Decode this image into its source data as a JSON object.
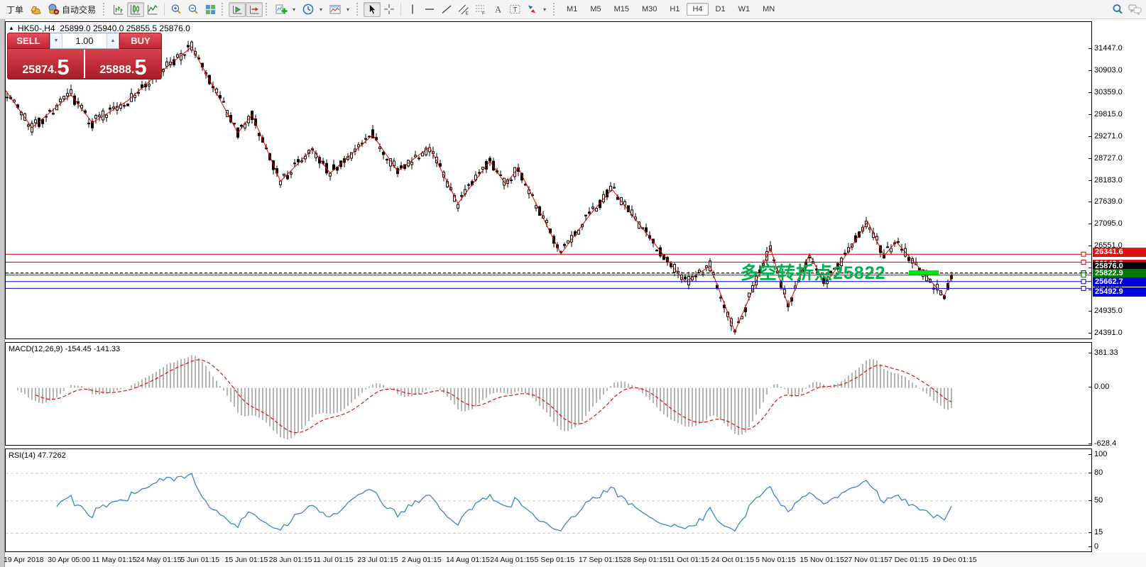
{
  "window": {
    "title_triangle": "▲",
    "symbol_period": "HK50-,H4",
    "ohlc": "25899.0 25940.0 25855.5 25876.0"
  },
  "icons": {
    "caret": "▾",
    "volume_down": "▼",
    "volume_up": "▲"
  },
  "toolbar": {
    "tools": [
      {
        "type": "text",
        "name": "orders-button",
        "label": "丁单"
      },
      {
        "type": "icon",
        "name": "new-order-icon",
        "icon": "ingot"
      },
      {
        "type": "icon-text",
        "name": "autotrade-button",
        "icon": "robot",
        "label": "自动交易"
      },
      {
        "type": "grip"
      },
      {
        "type": "icon",
        "name": "bar-chart-icon",
        "icon": "bars"
      },
      {
        "type": "icon",
        "name": "candlestick-chart-icon",
        "icon": "candles",
        "pressed": true
      },
      {
        "type": "icon",
        "name": "line-chart-icon",
        "icon": "linechart"
      },
      {
        "type": "sep"
      },
      {
        "type": "icon",
        "name": "zoom-in-icon",
        "icon": "zoomin"
      },
      {
        "type": "icon",
        "name": "zoom-out-icon",
        "icon": "zoomout"
      },
      {
        "type": "icon",
        "name": "tile-windows-icon",
        "icon": "tiles"
      },
      {
        "type": "grip"
      },
      {
        "type": "icon",
        "name": "auto-scroll-icon",
        "icon": "autoscroll",
        "pressed": true
      },
      {
        "type": "icon",
        "name": "chart-shift-icon",
        "icon": "shift",
        "pressed": true
      },
      {
        "type": "grip"
      },
      {
        "type": "icon",
        "name": "indicators-icon",
        "icon": "indicators"
      },
      {
        "type": "caret",
        "name": "indicators-dropdown"
      },
      {
        "type": "icon",
        "name": "periods-icon",
        "icon": "clock"
      },
      {
        "type": "caret",
        "name": "periods-dropdown"
      },
      {
        "type": "icon",
        "name": "templates-icon",
        "icon": "template"
      },
      {
        "type": "caret",
        "name": "templates-dropdown"
      },
      {
        "type": "grip"
      },
      {
        "type": "icon",
        "name": "cursor-icon",
        "icon": "cursor",
        "pressed": true
      },
      {
        "type": "icon",
        "name": "crosshair-icon",
        "icon": "crosshair"
      },
      {
        "type": "sep"
      },
      {
        "type": "icon",
        "name": "vertical-line-icon",
        "icon": "vline"
      },
      {
        "type": "icon",
        "name": "horizontal-line-icon",
        "icon": "hline"
      },
      {
        "type": "icon",
        "name": "trendline-icon",
        "icon": "trend"
      },
      {
        "type": "icon",
        "name": "equidistant-channel-icon",
        "icon": "channel"
      },
      {
        "type": "icon",
        "name": "fibonacci-icon",
        "icon": "fibo"
      },
      {
        "type": "icon",
        "name": "text-icon",
        "icon": "textA"
      },
      {
        "type": "icon",
        "name": "text-label-icon",
        "icon": "labelT"
      },
      {
        "type": "icon",
        "name": "arrows-icon",
        "icon": "arrows"
      },
      {
        "type": "caret",
        "name": "arrows-dropdown"
      },
      {
        "type": "grip"
      },
      {
        "type": "timeframes"
      },
      {
        "type": "spacer"
      },
      {
        "type": "icon",
        "name": "search-icon",
        "icon": "search"
      },
      {
        "type": "icon",
        "name": "chat-icon",
        "icon": "chat"
      }
    ],
    "timeframes": [
      "M1",
      "M5",
      "M15",
      "M30",
      "H1",
      "H4",
      "D1",
      "W1",
      "MN"
    ],
    "active_timeframe": "H4"
  },
  "trade_panel": {
    "sell_label": "SELL",
    "buy_label": "BUY",
    "volume": "1.00",
    "sell_main": "25874",
    "sell_frac": "5",
    "buy_main": "25888",
    "buy_frac": "5"
  },
  "chart": {
    "annotation": {
      "text": "多空转折点25822",
      "color": "#00b050"
    },
    "highlight_bar_color": "#00e600",
    "price_axis_ticks": [
      "31447.0",
      "30903.0",
      "30359.0",
      "29815.0",
      "29271.0",
      "28727.0",
      "28183.0",
      "27639.0",
      "27095.0",
      "26551.0",
      "26007.0",
      "25463.0",
      "24935.0",
      "24391.0"
    ],
    "levels": [
      {
        "label": "26341.6",
        "price": 26341.6,
        "color": "#cc0000",
        "bg": "#dd1111",
        "style": "solid"
      },
      {
        "label": "26143.5",
        "price": 26143.5,
        "color": "#cc0000",
        "bg": "#dd1111",
        "style": "solid"
      },
      {
        "label": "",
        "price": 25855.5,
        "color": "#aaaaaa",
        "bg": "",
        "style": "solid"
      },
      {
        "label": "25876.0",
        "price": 25876.0,
        "color": "#000000",
        "bg": "#000000",
        "style": "dashed"
      },
      {
        "label": "25822.9",
        "price": 25822.9,
        "color": "#006600",
        "bg": "#007a00",
        "style": "solid"
      },
      {
        "label": "25662.7",
        "price": 25662.7,
        "color": "#0000cc",
        "bg": "#0000dd",
        "style": "solid"
      },
      {
        "label": "25492.9",
        "price": 25492.9,
        "color": "#0000cc",
        "bg": "#0000dd",
        "style": "solid"
      }
    ]
  },
  "macd": {
    "name": "MACD(12,26,9)",
    "values": "-154.45 -141.33",
    "axis_ticks": [
      "381.33",
      "0.00",
      "-628.4"
    ]
  },
  "rsi": {
    "name": "RSI(14)",
    "value": "47.7262",
    "axis_ticks": [
      "100",
      "80",
      "50",
      "15",
      "0"
    ]
  },
  "date_axis": [
    "19 Apr 2018",
    "30 Apr 05:00",
    "11 May 01:15",
    "24 May 01:15",
    "5 Jun 01:15",
    "15 Jun 01:15",
    "28 Jun 01:15",
    "11 Jul 01:15",
    "23 Jul 01:15",
    "2 Aug 01:15",
    "14 Aug 01:15",
    "24 Aug 01:15",
    "5 Sep 01:15",
    "17 Sep 01:15",
    "28 Sep 01:15",
    "11 Oct 01:15",
    "24 Oct 01:15",
    "5 Nov 01:15",
    "15 Nov 01:15",
    "27 Nov 01:15",
    "7 Dec 01:15",
    "19 Dec 01:15"
  ],
  "chart_data": [
    {
      "type": "candlestick",
      "symbol": "HK50-",
      "timeframe": "H4",
      "ylim": [
        24391,
        31447
      ],
      "overlay": "red ZigZag swing line; anchors below as [x_px, price]",
      "zigzag_anchors": [
        [
          8,
          30400
        ],
        [
          45,
          29480
        ],
        [
          100,
          30300
        ],
        [
          130,
          29600
        ],
        [
          180,
          30150
        ],
        [
          215,
          30700
        ],
        [
          270,
          31480
        ],
        [
          335,
          29350
        ],
        [
          355,
          29800
        ],
        [
          395,
          28150
        ],
        [
          440,
          28950
        ],
        [
          465,
          28350
        ],
        [
          525,
          29300
        ],
        [
          560,
          28400
        ],
        [
          605,
          29000
        ],
        [
          645,
          27600
        ],
        [
          690,
          28650
        ],
        [
          712,
          28080
        ],
        [
          730,
          28480
        ],
        [
          790,
          26350
        ],
        [
          830,
          27300
        ],
        [
          862,
          27950
        ],
        [
          930,
          26420
        ],
        [
          965,
          25650
        ],
        [
          1000,
          26050
        ],
        [
          1035,
          24420
        ],
        [
          1085,
          26500
        ],
        [
          1110,
          25050
        ],
        [
          1140,
          26350
        ],
        [
          1162,
          25600
        ],
        [
          1185,
          26150
        ],
        [
          1222,
          27150
        ],
        [
          1245,
          26300
        ],
        [
          1262,
          26650
        ],
        [
          1330,
          25300
        ],
        [
          1342,
          25876
        ]
      ]
    },
    {
      "type": "bar",
      "name": "MACD(12,26,9) histogram + red dashed signal",
      "ylim": [
        -628.4,
        381.33
      ],
      "readout": [
        -154.45,
        -141.33
      ]
    },
    {
      "type": "line",
      "name": "RSI(14)",
      "ylim": [
        0,
        100
      ],
      "level_lines": [
        15,
        50,
        80
      ],
      "readout": 47.7262
    }
  ]
}
